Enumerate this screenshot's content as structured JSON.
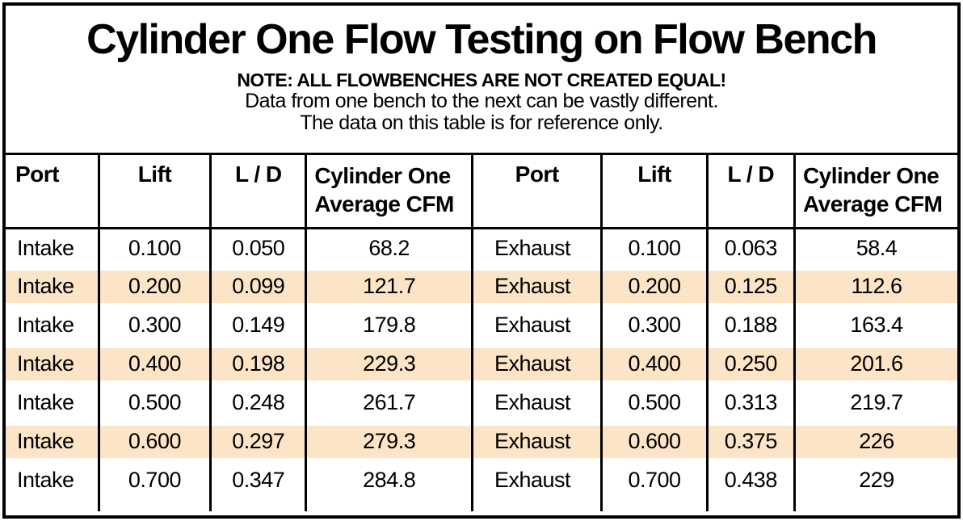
{
  "header": {
    "title": "Cylinder One Flow Testing on Flow Bench",
    "note": "NOTE: ALL FLOWBENCHES ARE NOT CREATED EQUAL!",
    "subnote1": "Data from one bench to the next can be vastly different.",
    "subnote2": "The data on this table is for reference only."
  },
  "table": {
    "headers": [
      "Port",
      "Lift",
      "L / D",
      "Cylinder One\nAverage CFM",
      "Port",
      "Lift",
      "L / D",
      "Cylinder One\nAverage CFM"
    ],
    "rows": [
      [
        "Intake",
        "0.100",
        "0.050",
        "68.2",
        "Exhaust",
        "0.100",
        "0.063",
        "58.4"
      ],
      [
        "Intake",
        "0.200",
        "0.099",
        "121.7",
        "Exhaust",
        "0.200",
        "0.125",
        "112.6"
      ],
      [
        "Intake",
        "0.300",
        "0.149",
        "179.8",
        "Exhaust",
        "0.300",
        "0.188",
        "163.4"
      ],
      [
        "Intake",
        "0.400",
        "0.198",
        "229.3",
        "Exhaust",
        "0.400",
        "0.250",
        "201.6"
      ],
      [
        "Intake",
        "0.500",
        "0.248",
        "261.7",
        "Exhaust",
        "0.500",
        "0.313",
        "219.7"
      ],
      [
        "Intake",
        "0.600",
        "0.297",
        "279.3",
        "Exhaust",
        "0.600",
        "0.375",
        "226"
      ],
      [
        "Intake",
        "0.700",
        "0.347",
        "284.8",
        "Exhaust",
        "0.700",
        "0.438",
        "229"
      ]
    ],
    "shaded_row_indexes": [
      1,
      3,
      5
    ],
    "colors": {
      "shaded_row": "#fce4c7",
      "border": "#000000",
      "text": "#000000"
    }
  }
}
